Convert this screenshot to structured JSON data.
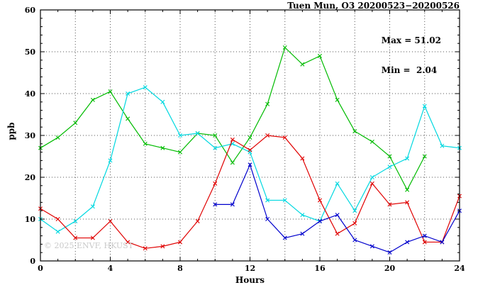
{
  "title": "Tuen Mun, O3 20200523−20200526",
  "annotations": {
    "max_label": "Max = 51.02",
    "min_label": "Min =  2.04"
  },
  "watermark": "© 2025 ENVF, HKUST",
  "chart_data": {
    "type": "line",
    "title": "Tuen Mun, O3 20200523−20200526",
    "xlabel": "Hours",
    "ylabel": "ppb",
    "xlim": [
      0,
      24
    ],
    "ylim": [
      0,
      60
    ],
    "x_tick_step": 4,
    "x_minor_step": 1,
    "x_grid_step": 2,
    "y_tick_step": 10,
    "y_minor_step": 2,
    "y_grid_step": 10,
    "grid": "dotted",
    "legend": "none",
    "max": 51.02,
    "min": 2.04,
    "series": [
      {
        "name": "green-series",
        "color": "#00bb00",
        "x": [
          0,
          1,
          2,
          3,
          4,
          5,
          6,
          7,
          8,
          9,
          10,
          11,
          12,
          13,
          14,
          15,
          16,
          17,
          18,
          19,
          20,
          21,
          22
        ],
        "y": [
          27,
          29.5,
          33,
          38.5,
          40.5,
          34,
          28,
          27,
          26,
          30.5,
          30,
          23.5,
          29.5,
          37.5,
          51.02,
          47,
          49,
          38.5,
          31,
          28.5,
          25,
          17,
          25
        ]
      },
      {
        "name": "cyan-series",
        "color": "#00d8e0",
        "x": [
          0,
          1,
          2,
          3,
          4,
          5,
          6,
          7,
          8,
          9,
          10,
          11,
          12,
          13,
          14,
          15,
          16,
          17,
          18,
          19,
          20,
          21,
          22,
          23,
          24
        ],
        "y": [
          10,
          7,
          9.5,
          13,
          24,
          40,
          41.5,
          38,
          30,
          30.5,
          27,
          28,
          26,
          14.5,
          14.5,
          11,
          9.5,
          18.5,
          12,
          20,
          22.5,
          24.5,
          37,
          27.5,
          27
        ]
      },
      {
        "name": "red-series",
        "color": "#e00000",
        "x": [
          0,
          1,
          2,
          3,
          4,
          5,
          6,
          7,
          8,
          9,
          10,
          11,
          12,
          13,
          14,
          15,
          16,
          17,
          18,
          19,
          20,
          21,
          22,
          23,
          24
        ],
        "y": [
          12.5,
          10,
          5.5,
          5.5,
          9.5,
          4.5,
          3,
          3.5,
          4.5,
          9.5,
          18.5,
          29,
          26.5,
          30,
          29.5,
          24.5,
          14.5,
          6.5,
          9,
          18.5,
          13.5,
          14,
          4.5,
          4.5,
          15.5
        ]
      },
      {
        "name": "blue-series",
        "color": "#0000cd",
        "x": [
          10,
          11,
          12,
          13,
          14,
          15,
          16,
          17,
          18,
          19,
          20,
          21,
          22,
          23,
          24
        ],
        "y": [
          13.5,
          13.5,
          23,
          10,
          5.5,
          6.5,
          9.5,
          11,
          5,
          3.5,
          2.04,
          4.5,
          6,
          4.5,
          12
        ]
      }
    ]
  }
}
